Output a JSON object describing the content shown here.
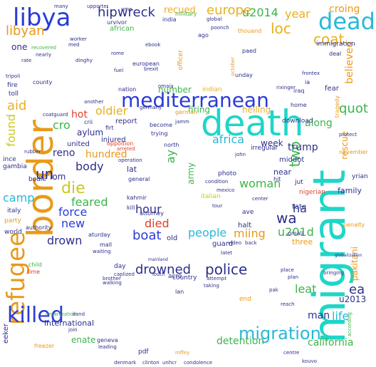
{
  "colors": {
    "background": "#ffffff",
    "teal": "#1fd6c8",
    "cyan": "#28b8d8",
    "blue": "#2a3bd6",
    "indigo": "#4a35c8",
    "navy": "#2c2f8a",
    "purple": "#6a2cb0",
    "orange": "#e89a1a",
    "amber": "#e8b020",
    "yellow": "#c8c820",
    "green": "#3cb44b",
    "lime": "#8ac826",
    "red": "#e0402a"
  },
  "words": {
    "migrant": "migrant",
    "death": "death",
    "border": "border",
    "mediterranean": "mediterranean",
    "libya": "libya",
    "dead": "dead",
    "refugee": "refugee",
    "killed": "killed",
    "migration": "migration",
    "drowned": "drowned",
    "police": "police",
    "libyan": "libyan",
    "europe": "europe",
    "u2014": "u2014",
    "hipwreck": "hipwreck",
    "coat": "coat",
    "loc": "loc",
    "year": "year",
    "croing": "croing",
    "die": "die",
    "body": "body",
    "feared": "feared",
    "force": "force",
    "drown": "drown",
    "new": "new",
    "died": "died",
    "boat": "boat",
    "people": "people",
    "miing": "miing",
    "hour": "hour",
    "woman": "woman",
    "wa": "wa",
    "ha": "ha",
    "two": "two",
    "aid": "aid",
    "found": "found",
    "oldier": "oldier",
    "africa": "africa",
    "believed": "believed",
    "quot": "quot",
    "u201d": "u201d",
    "leat": "leat",
    "ea": "ea",
    "life": "life",
    "man": "man",
    "detention": "detention",
    "international": "international",
    "california": "california",
    "enate": "enate",
    "cro": "cro",
    "reno": "reno",
    "un": "un",
    "iom": "iom",
    "camp": "camp",
    "hundred": "hundred",
    "firing": "firing",
    "helling": "helling",
    "week": "week",
    "trump": "trump",
    "along": "along",
    "rescue": "rescue",
    "ay": "ay",
    "one": "one",
    "recued": "recued",
    "hot": "hot",
    "aylum": "aylum",
    "number": "number",
    "african": "african",
    "fire": "fire",
    "toll": "toll",
    "eeker": "eeker",
    "bodie": "bodie",
    "united": "united",
    "injured": "injured",
    "report": "report",
    "guard": "guard",
    "army": "army",
    "u2013": "u2013",
    "pakitani": "pakitani",
    "three": "three",
    "family": "family",
    "military": "military",
    "european": "european",
    "officer": "officer",
    "germany": "germany",
    "italian": "italian",
    "indian": "indian",
    "nigerian": "nigerian",
    "city": "city",
    "photo": "photo",
    "attack": "attack",
    "iraq": "iraq",
    "turkey": "turkey",
    "kahmir": "kahmir",
    "halt": "halt",
    "alo": "alo",
    "ave": "ave",
    "old": "old",
    "lat": "lat",
    "near": "near",
    "tate": "tate",
    "mall": "mall",
    "world": "world",
    "party": "party",
    "italy": "italy",
    "inc": "ince",
    "gambia": "gambia",
    "authority": "authority",
    "child": "child",
    "time": "time",
    "day": "day",
    "mexico": "mexico",
    "centre": "centre",
    "geneva": "geneva",
    "pdf": "pdf",
    "download": "download",
    "middot": "middot",
    "irregular": "irregular",
    "november": "november",
    "yrian": "yrian",
    "jut": "jut",
    "hit": "hit",
    "penalty": "penalty",
    "omali": "omali",
    "according": "according",
    "india": "india",
    "ago": "ago",
    "thouand": "thouand",
    "global": "global",
    "poonch": "poonch",
    "breaking": "breaking",
    "immigration": "immigration",
    "deal": "deal",
    "high": "high",
    "paed": "paed",
    "unday": "unday",
    "ia": "ia",
    "fear": "fear",
    "home": "home",
    "tragedy": "tragedy",
    "protect": "protect",
    "fleeing": "fleeing",
    "rubber": "rubber",
    "coatguard": "coatguard",
    "county": "county",
    "tripoli": "tripoli",
    "rate": "rate",
    "ee": "ee",
    "ie": "ie",
    "nation": "nation",
    "another": "another",
    "firt": "firt",
    "crii": "crii",
    "become": "become",
    "trying": "trying",
    "german": "german",
    "north": "north",
    "oppoition": "oppoition",
    "arreted": "arreted",
    "general": "general",
    "operation": "operation",
    "kill": "kill",
    "attorney": "attorney",
    "center": "center",
    "nearly": "nearly",
    "urvivor": "urvivor",
    "worker": "worker",
    "recovered": "recovered",
    "greece": "greece",
    "jan": "jan",
    "aturday": "aturday",
    "video": "video",
    "back": "back",
    "end": "end",
    "country": "country",
    "acro": "acro",
    "lan": "lan",
    "taking": "taking",
    "reach": "reach",
    "louth": "louth",
    "iland": "iland",
    "organization": "organization",
    "join": "join",
    "freezer": "freezer",
    "roffey": "roffey",
    "condolence": "condolence",
    "clinton": "clinton",
    "unhcr": "unhcr",
    "denmark": "denmark",
    "leading": "leading",
    "kouvo": "kouvo",
    "brother": "brother",
    "caplized": "caplized",
    "walking": "walking",
    "latet": "latet",
    "waiting": "waiting",
    "attempt": "attempt",
    "bringing": "bringing",
    "globalization": "globalization",
    "ue": "ue",
    "pak": "pak",
    "place": "place",
    "plan": "plan",
    "dinghy": "dinghy",
    "med": "med",
    "ebook": "ebook",
    "brexit": "brexit",
    "rome": "rome",
    "omaia": "omaia",
    "jamm": "jamm",
    "october": "october",
    "upporter": "upporter",
    "many": "many",
    "vital": "vital",
    "inide": "inide",
    "mainland": "mainland",
    "ome": "ome",
    "fuel": "fuel",
    "cardea": "cardea",
    "fourth": "fourth",
    "tour": "tour",
    "john": "john",
    "wall": "wall",
    "ame": "ame",
    "parliament": "parliament",
    "ingle": "ingle",
    "indian2": "iraqi",
    "rixinger": "rixinger",
    "wart": "wart",
    "ue2": "ue",
    "rather": "rather",
    "help": "help",
    "gold": "gold",
    "frontex": "frontex",
    "reponders": "reponder",
    "condition": "condition",
    "peronnel": "peronnel",
    "yout": "yout",
    "muteia": "muteia",
    "report2": "reported",
    "atlantic": "atlantic",
    "plae": "plae",
    "ina": "ina",
    "gd": "gd",
    "opec": "opec",
    "pe": "pe",
    "tbc": "tbc"
  }
}
